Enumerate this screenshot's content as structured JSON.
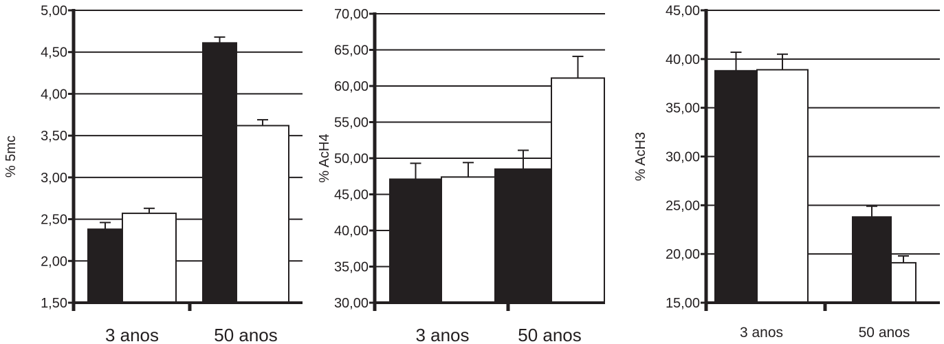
{
  "chart_data": [
    {
      "type": "bar",
      "ylabel": "% 5mc",
      "categories": [
        "3 anos",
        "50 anos"
      ],
      "yticks": [
        "1,50",
        "2,00",
        "2,50",
        "3,00",
        "3,50",
        "4,00",
        "4,50",
        "5,00"
      ],
      "ylim": [
        1.5,
        5.0
      ],
      "grid": true,
      "series": [
        {
          "color": "#231f20",
          "values": [
            2.38,
            4.61
          ],
          "errors": [
            0.08,
            0.07
          ]
        },
        {
          "color": "#ffffff",
          "values": [
            2.57,
            3.62
          ],
          "errors": [
            0.06,
            0.07
          ]
        }
      ]
    },
    {
      "type": "bar",
      "ylabel": "% AcH4",
      "categories": [
        "3 anos",
        "50 anos"
      ],
      "yticks": [
        "30,00",
        "35,00",
        "40,00",
        "45,00",
        "50,00",
        "55,00",
        "60,00",
        "65,00",
        "70,00"
      ],
      "ylim": [
        30,
        70
      ],
      "grid": true,
      "series": [
        {
          "color": "#231f20",
          "values": [
            47.1,
            48.5
          ],
          "errors": [
            2.2,
            2.6
          ]
        },
        {
          "color": "#ffffff",
          "values": [
            47.4,
            61.1
          ],
          "errors": [
            2.0,
            3.0
          ]
        }
      ]
    },
    {
      "type": "bar",
      "ylabel": "% AcH3",
      "categories": [
        "3 anos",
        "50 anos"
      ],
      "yticks": [
        "15,00",
        "20,00",
        "25,00",
        "30,00",
        "35,00",
        "40,00",
        "45,00"
      ],
      "ylim": [
        15,
        45
      ],
      "grid": true,
      "series": [
        {
          "color": "#231f20",
          "values": [
            38.8,
            23.8
          ],
          "errors": [
            1.9,
            1.1
          ]
        },
        {
          "color": "#ffffff",
          "values": [
            38.9,
            19.1
          ],
          "errors": [
            1.6,
            0.7
          ]
        }
      ]
    }
  ]
}
